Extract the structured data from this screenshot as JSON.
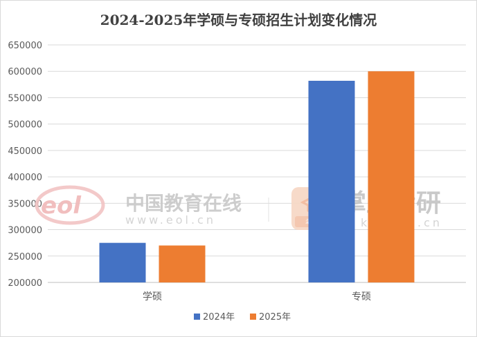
{
  "chart_data": {
    "type": "bar",
    "title": "2024-2025年学硕与专硕招生计划变化情况",
    "categories": [
      "学硕",
      "专硕"
    ],
    "series": [
      {
        "name": "2024年",
        "color": "#4472C4",
        "values": [
          275000,
          582000
        ]
      },
      {
        "name": "2025年",
        "color": "#ED7D31",
        "values": [
          270000,
          600000
        ]
      }
    ],
    "ylim": [
      200000,
      650000
    ],
    "yticks": [
      "200000",
      "250000",
      "300000",
      "350000",
      "400000",
      "450000",
      "500000",
      "550000",
      "600000",
      "650000"
    ],
    "grid": true,
    "legend_position": "bottom"
  },
  "watermark": {
    "eol_logo": "eol",
    "eol_name": "中国教育在线",
    "eol_url": "www.eol.cn",
    "zs_logo_badge": "考研",
    "zs_name": "掌上考研",
    "zs_url": "kaoyan.cn"
  }
}
